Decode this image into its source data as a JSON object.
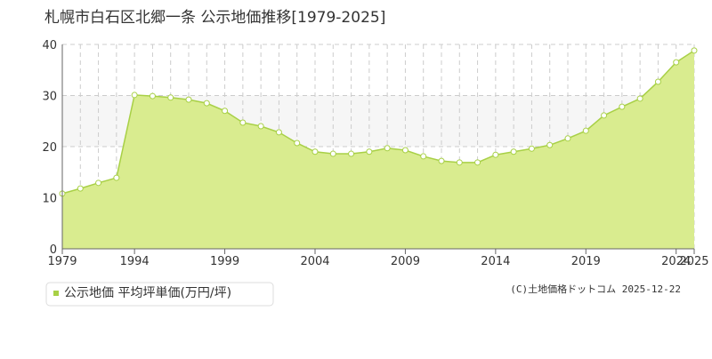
{
  "chart_data": {
    "type": "area",
    "title": "札幌市白石区北郷一条 公示地価推移[1979-2025]",
    "categories": [
      "1979",
      null,
      null,
      null,
      "1994",
      null,
      null,
      null,
      null,
      "1999",
      null,
      null,
      null,
      null,
      "2004",
      null,
      null,
      null,
      null,
      "2009",
      null,
      null,
      null,
      null,
      "2014",
      null,
      null,
      null,
      null,
      "2019",
      null,
      null,
      null,
      null,
      "2024",
      "2025"
    ],
    "series": [
      {
        "name": "公示地価 平均坪単価(万円/坪)",
        "color": "#a8d046",
        "fill": "#d9ec8f",
        "values": [
          10.8,
          11.8,
          12.9,
          13.9,
          30.1,
          29.9,
          29.6,
          29.2,
          28.5,
          27.0,
          24.7,
          24.0,
          22.8,
          20.7,
          19.0,
          18.6,
          18.6,
          19.0,
          19.7,
          19.3,
          18.1,
          17.2,
          16.9,
          16.9,
          18.4,
          19.0,
          19.6,
          20.3,
          21.6,
          23.1,
          26.1,
          27.8,
          29.4,
          32.7,
          36.5,
          38.8
        ]
      }
    ],
    "ylim": [
      0,
      40
    ],
    "yticks": [
      0,
      10,
      20,
      30,
      40
    ],
    "grid": true,
    "copyright": "(C)土地価格ドットコム 2025-12-22"
  }
}
